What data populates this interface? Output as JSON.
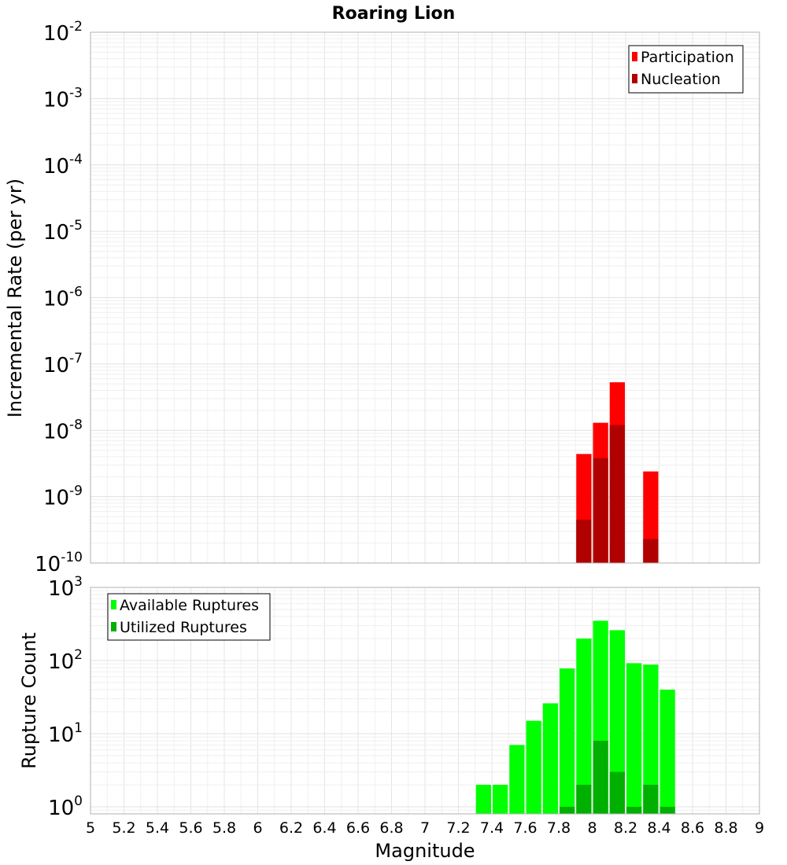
{
  "chart_data": [
    {
      "type": "bar",
      "title": "Roaring Lion",
      "ylabel": "Incremental Rate (per yr)",
      "xlabel": "",
      "yscale": "log",
      "ylim": [
        1e-10,
        0.01
      ],
      "y_ticks": [
        {
          "base": "10",
          "exp": "-2",
          "value": 0.01
        },
        {
          "base": "10",
          "exp": "-3",
          "value": 0.001
        },
        {
          "base": "10",
          "exp": "-4",
          "value": 0.0001
        },
        {
          "base": "10",
          "exp": "-5",
          "value": 1e-05
        },
        {
          "base": "10",
          "exp": "-6",
          "value": 1e-06
        },
        {
          "base": "10",
          "exp": "-7",
          "value": 1e-07
        },
        {
          "base": "10",
          "exp": "-8",
          "value": 1e-08
        },
        {
          "base": "10",
          "exp": "-9",
          "value": 1e-09
        },
        {
          "base": "10",
          "exp": "-10",
          "value": 1e-10
        }
      ],
      "xlim": [
        5,
        9
      ],
      "grid": true,
      "legend_position": "top-right",
      "bar_width": 0.1,
      "series": [
        {
          "name": "Participation",
          "color": "#ff0000",
          "x": [
            7.95,
            8.05,
            8.15,
            8.35
          ],
          "values": [
            4.4e-09,
            1.3e-08,
            5.3e-08,
            2.4e-09
          ]
        },
        {
          "name": "Nucleation",
          "color": "#b00000",
          "x": [
            7.95,
            8.05,
            8.15,
            8.35
          ],
          "values": [
            4.5e-10,
            3.8e-09,
            1.2e-08,
            2.3e-10
          ]
        }
      ]
    },
    {
      "type": "bar",
      "title": "",
      "ylabel": "Rupture Count",
      "xlabel": "Magnitude",
      "yscale": "log",
      "ylim": [
        0.8,
        1000
      ],
      "y_ticks": [
        {
          "base": "10",
          "exp": "3",
          "value": 1000
        },
        {
          "base": "10",
          "exp": "2",
          "value": 100
        },
        {
          "base": "10",
          "exp": "1",
          "value": 10
        },
        {
          "base": "10",
          "exp": "0",
          "value": 1
        }
      ],
      "xlim": [
        5,
        9
      ],
      "x_ticks": [
        "5",
        "5.2",
        "5.4",
        "5.6",
        "5.8",
        "6",
        "6.2",
        "6.4",
        "6.6",
        "6.8",
        "7",
        "7.2",
        "7.4",
        "7.6",
        "7.8",
        "8",
        "8.2",
        "8.4",
        "8.6",
        "8.8",
        "9"
      ],
      "grid": true,
      "legend_position": "top-left",
      "bar_width": 0.1,
      "series": [
        {
          "name": "Available Ruptures",
          "color": "#00ff00",
          "x": [
            7.35,
            7.45,
            7.55,
            7.65,
            7.75,
            7.85,
            7.95,
            8.05,
            8.15,
            8.25,
            8.35,
            8.45
          ],
          "values": [
            2,
            2,
            7,
            15,
            26,
            78,
            200,
            350,
            260,
            92,
            88,
            40
          ]
        },
        {
          "name": "Utilized Ruptures",
          "color": "#00b000",
          "x": [
            7.85,
            7.95,
            8.05,
            8.15,
            8.25,
            8.35,
            8.45
          ],
          "values": [
            1,
            2,
            8,
            3,
            1,
            2,
            1
          ]
        }
      ]
    }
  ]
}
